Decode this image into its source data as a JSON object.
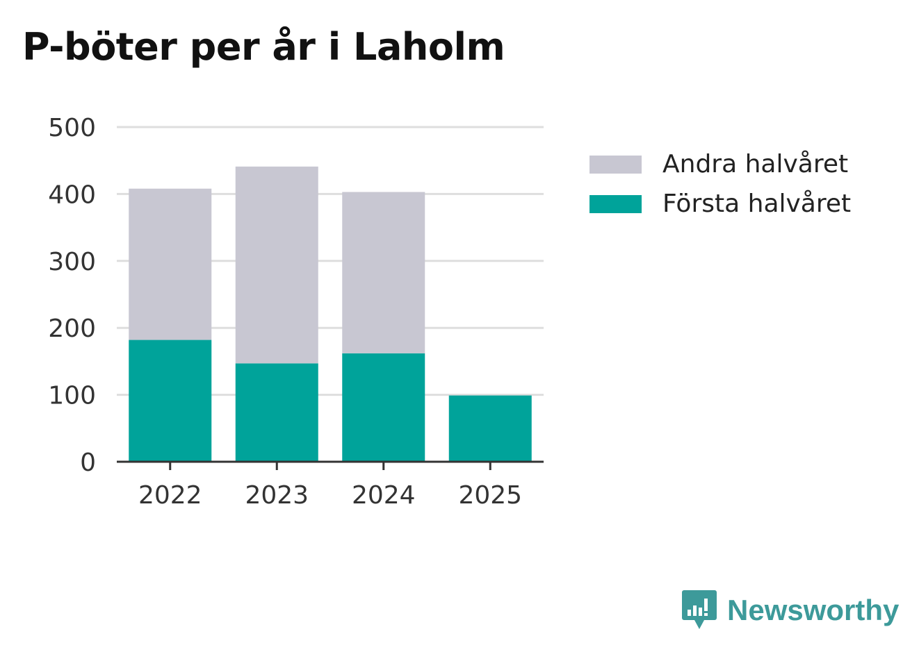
{
  "title": "P-böter per år i Laholm",
  "chart_data": {
    "type": "bar",
    "stacked": true,
    "categories": [
      "2022",
      "2023",
      "2024",
      "2025"
    ],
    "series": [
      {
        "name": "Första halvåret",
        "values": [
          182,
          147,
          162,
          99
        ],
        "color": "#00a39a"
      },
      {
        "name": "Andra halvåret",
        "values": [
          226,
          294,
          241,
          0
        ],
        "color": "#c8c7d2"
      }
    ],
    "ylim": [
      0,
      500
    ],
    "yticks": [
      "0",
      "100",
      "200",
      "300",
      "400",
      "500"
    ],
    "grid": true,
    "legend_position": "right",
    "legend": [
      {
        "label": "Andra halvåret",
        "color": "#c8c7d2"
      },
      {
        "label": "Första halvåret",
        "color": "#00a39a"
      }
    ]
  },
  "brand": {
    "label": "Newsworthy",
    "icon": "newsworthy-logo-icon",
    "color": "#3d9a9a"
  }
}
